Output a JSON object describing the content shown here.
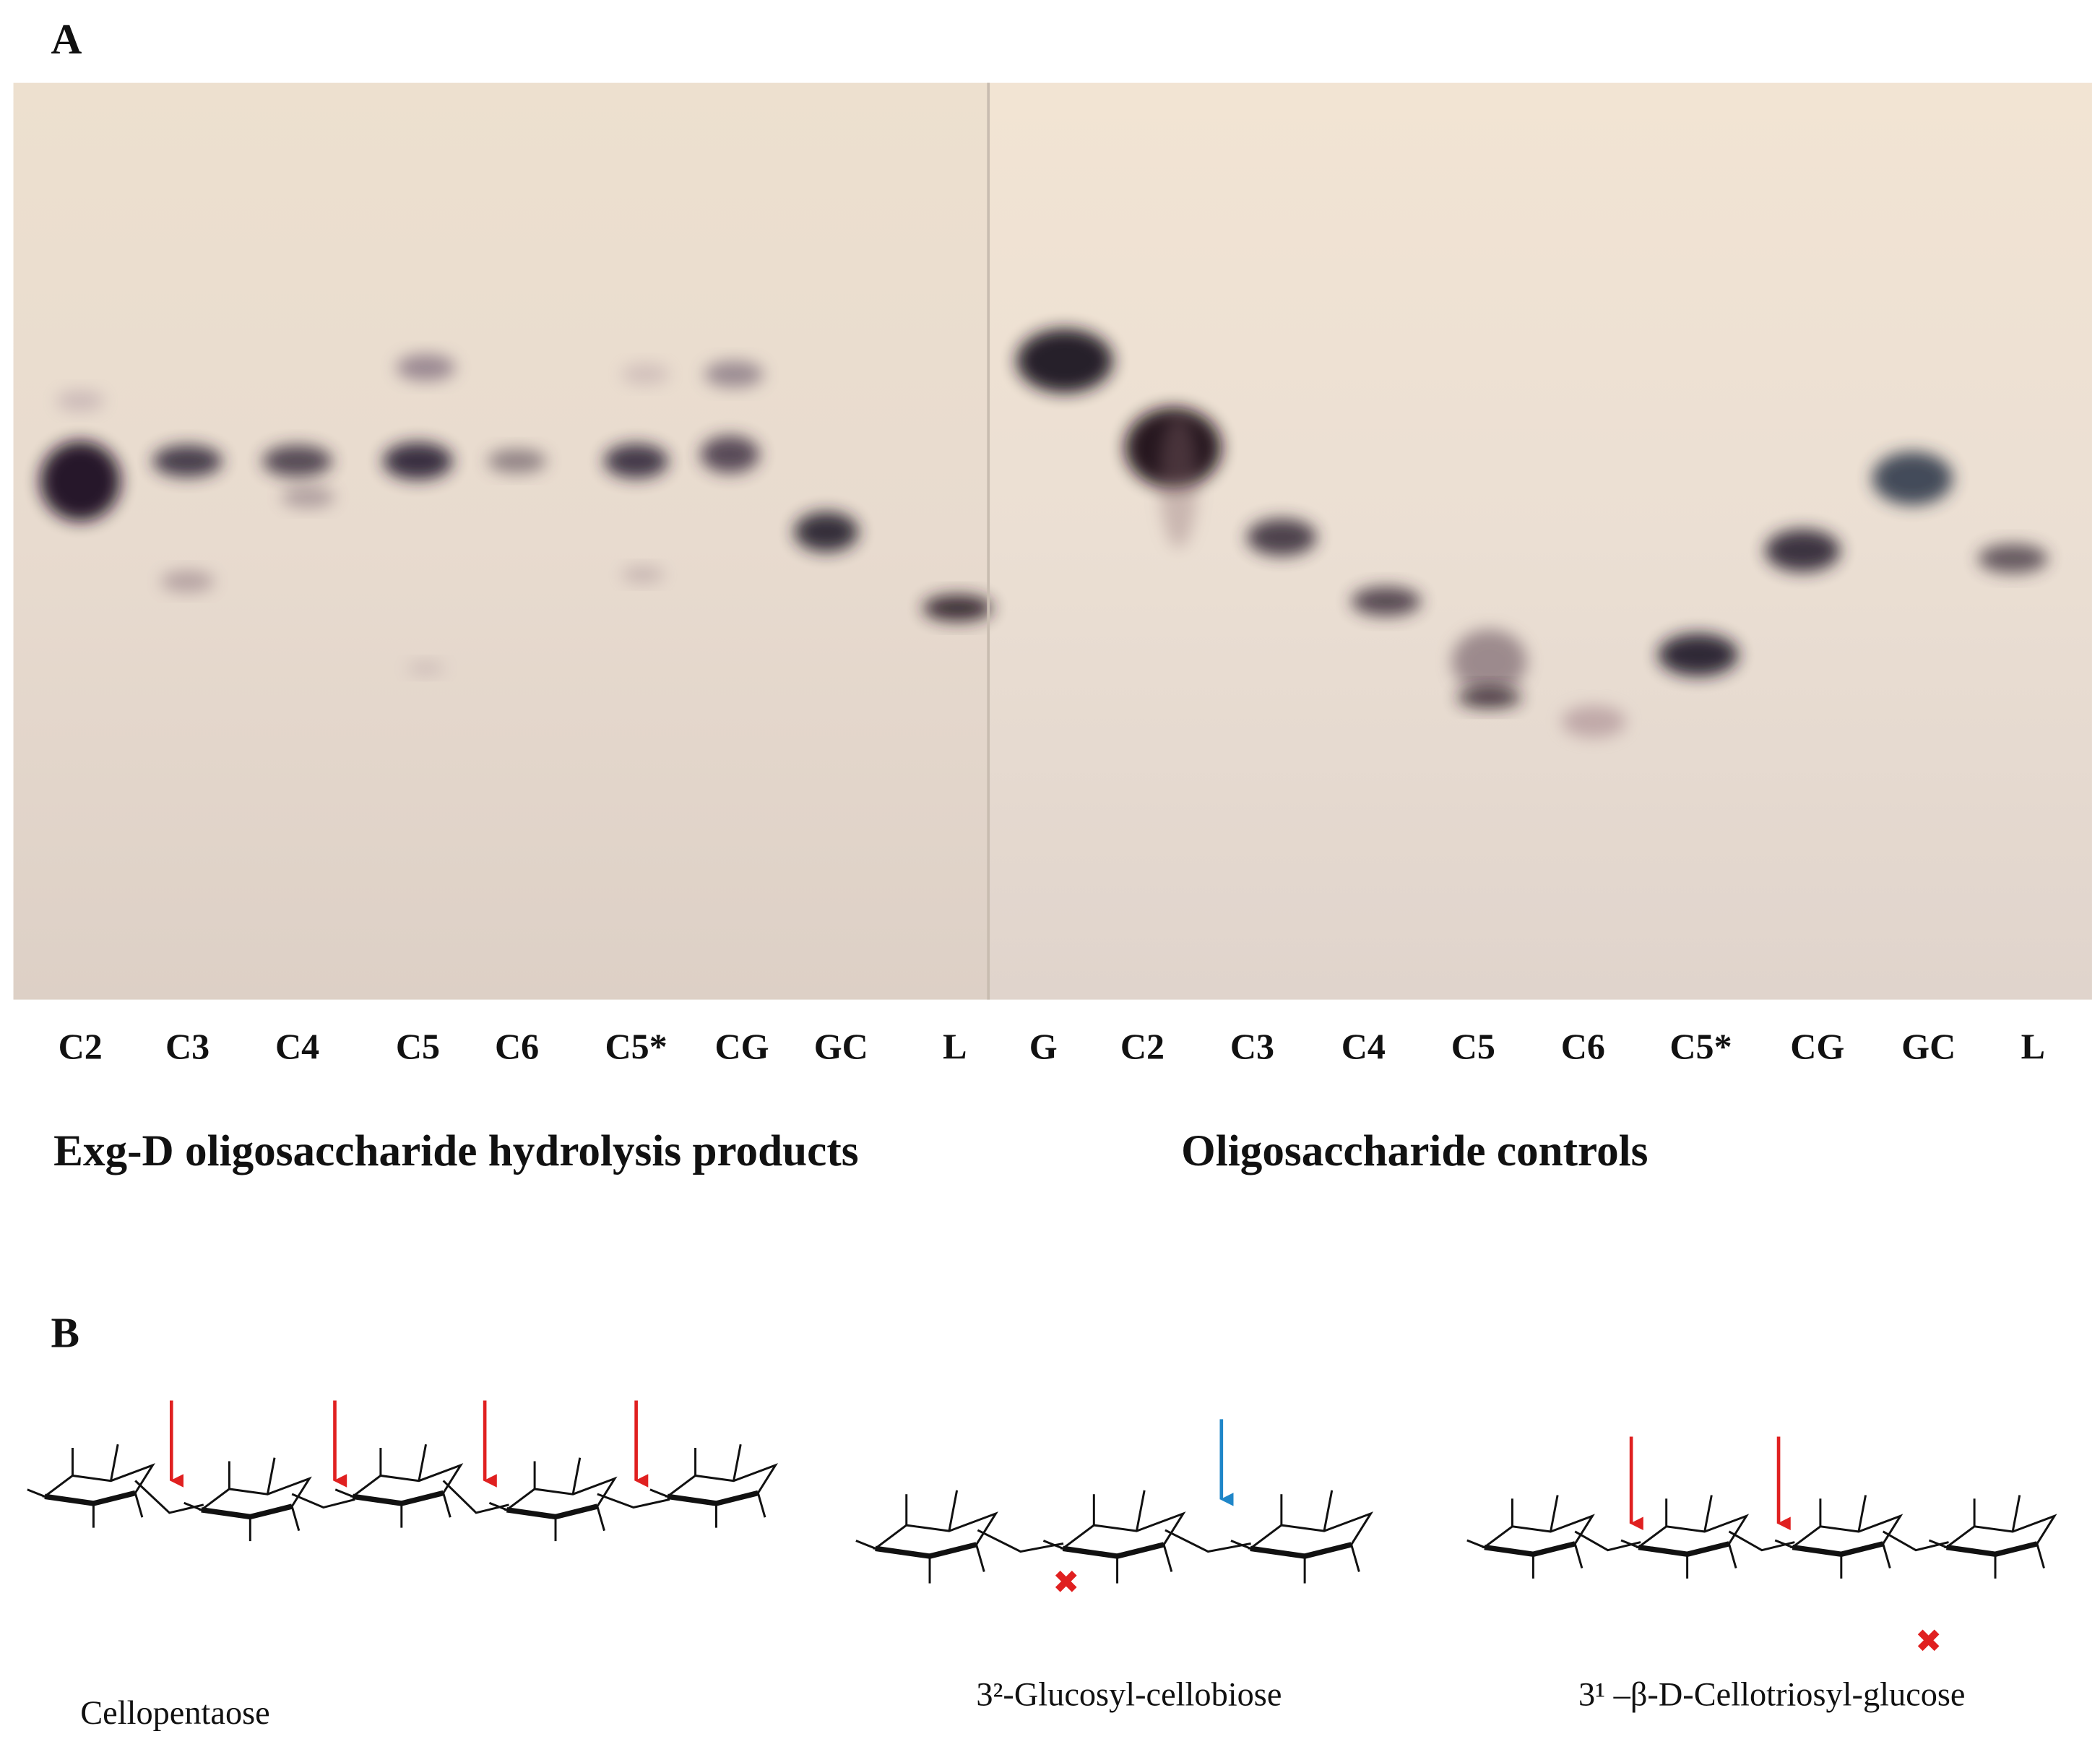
{
  "panel_a": {
    "label": "A",
    "left_lanes": [
      "C2",
      "C3",
      "C4",
      "C5",
      "C6",
      "C5*",
      "CG",
      "GC",
      "L"
    ],
    "right_lanes": [
      "G",
      "C2",
      "C3",
      "C4",
      "C5",
      "C6",
      "C5*",
      "CG",
      "GC",
      "L"
    ],
    "left_caption": "Exg-D oligosaccharide hydrolysis products",
    "right_caption": "Oligosaccharide controls"
  },
  "panel_b": {
    "label": "B",
    "compounds": [
      "Cellopentaose",
      "3²-Glucosyl-cellobiose",
      "3¹ –β-D-Cellotriosyl-glucose"
    ]
  }
}
